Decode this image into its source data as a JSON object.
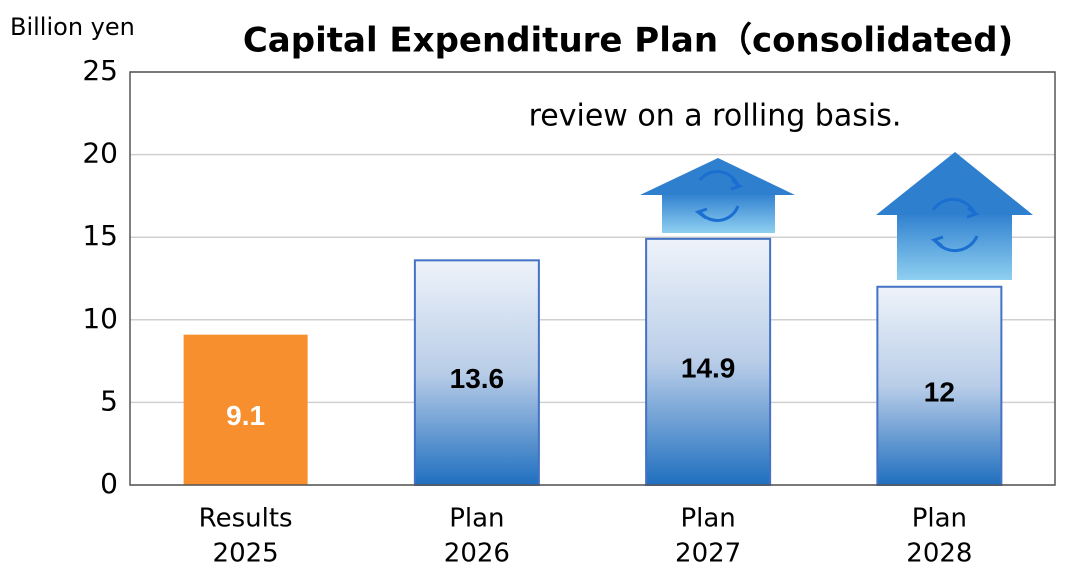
{
  "chart_data": {
    "type": "bar",
    "title": "Capital Expenditure Plan（consolidated)",
    "y_axis_label": "Billion yen",
    "annotation": "review on a rolling basis.",
    "categories": [
      [
        "Results",
        "2025"
      ],
      [
        "Plan",
        "2026"
      ],
      [
        "Plan",
        "2027"
      ],
      [
        "Plan",
        "2028"
      ]
    ],
    "values": [
      9.1,
      13.6,
      14.9,
      12
    ],
    "colors": [
      "#f78f2e",
      "#1f6fbf",
      "#1f6fbf",
      "#1f6fbf"
    ],
    "label_colors": [
      "#ffffff",
      "#000000",
      "#000000",
      "#000000"
    ],
    "ylim": [
      0,
      25
    ],
    "yticks": [
      0,
      5,
      10,
      15,
      20,
      25
    ],
    "grid": true
  }
}
